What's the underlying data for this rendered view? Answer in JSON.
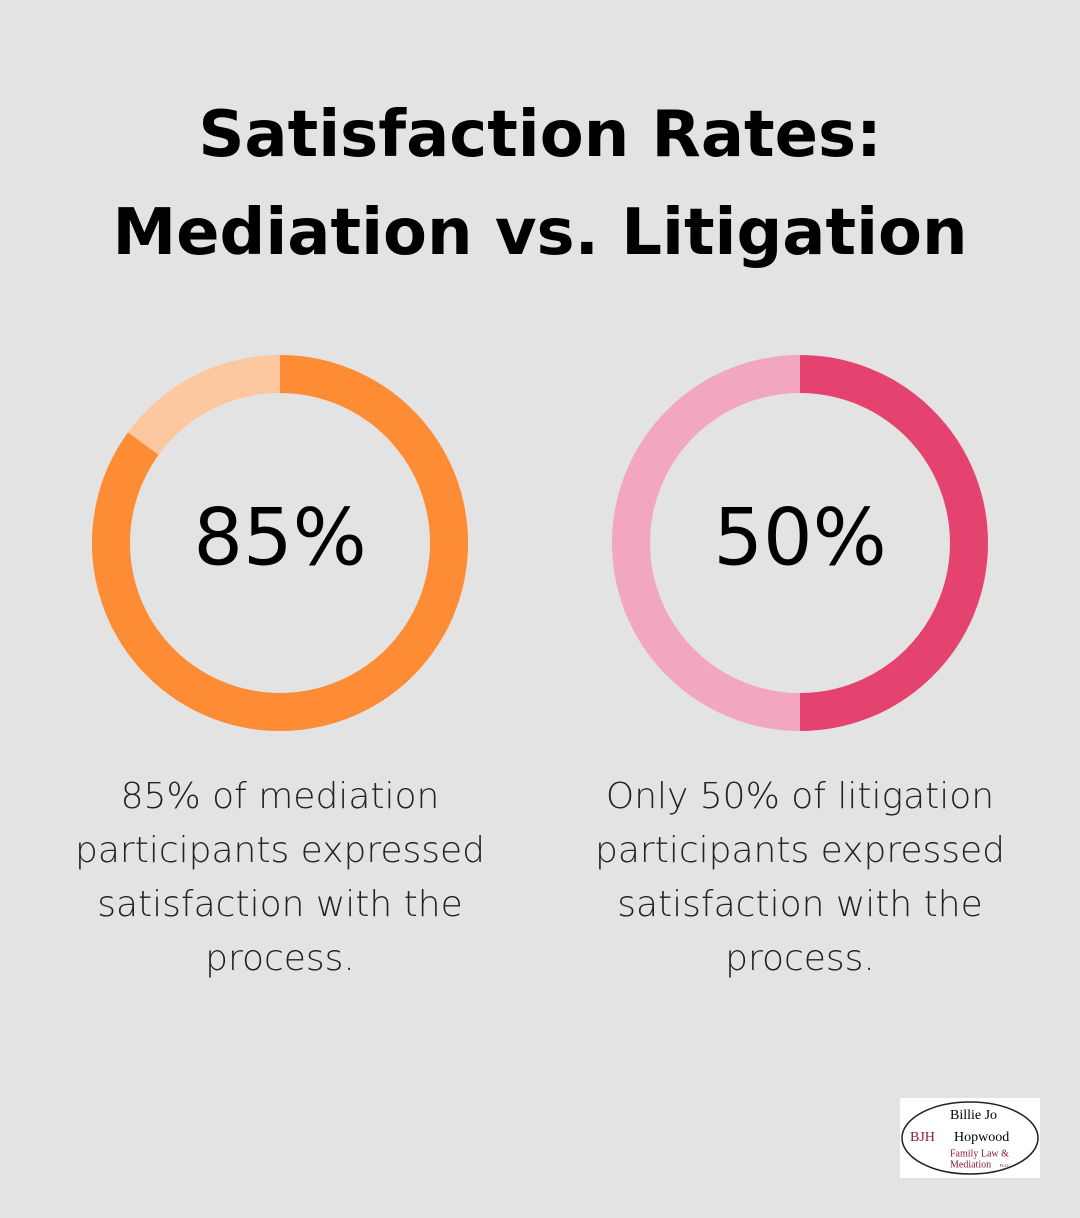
{
  "title": [
    "Satisfaction Rates:",
    "Mediation vs. Litigation"
  ],
  "chart_data": [
    {
      "type": "donut",
      "values": [
        85
      ],
      "value_labels": [
        "85%"
      ],
      "ylim": [
        0,
        100
      ],
      "color": "#fd8c35",
      "track_color": "#fdc89f",
      "caption": "85% of mediation participants expressed satisfaction with the process."
    },
    {
      "type": "donut",
      "values": [
        50
      ],
      "value_labels": [
        "50%"
      ],
      "ylim": [
        0,
        100
      ],
      "color": "#e5436f",
      "track_color": "#f2a7bf",
      "caption": "Only 50% of litigation participants expressed satisfaction with the process."
    }
  ],
  "logo": {
    "initials": "BJH",
    "name": [
      "Billie Jo",
      "Hopwood"
    ],
    "tagline": [
      "Family Law &",
      "Mediation"
    ],
    "suffix": "PLLC"
  }
}
